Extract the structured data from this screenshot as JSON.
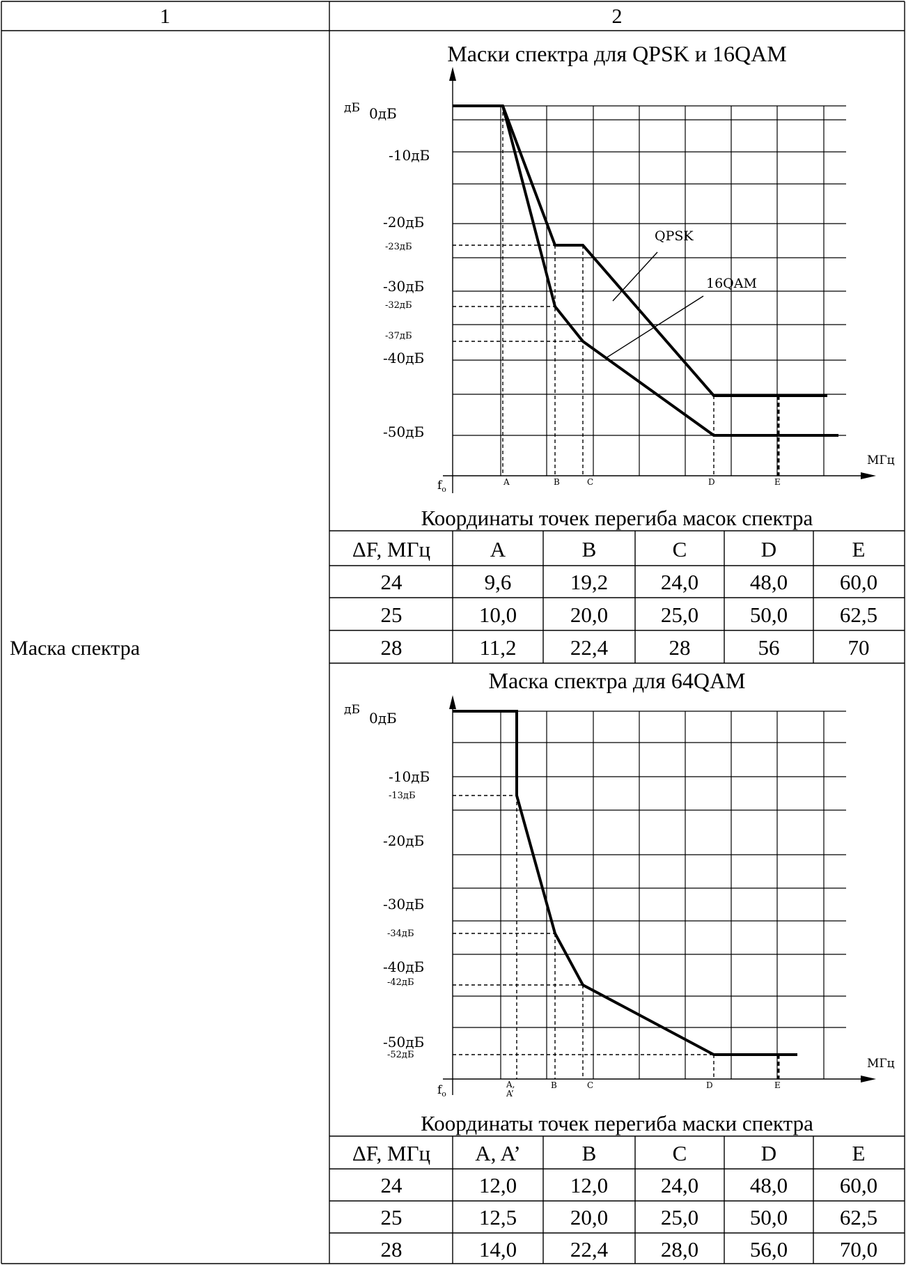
{
  "header": {
    "col1": "1",
    "col2": "2"
  },
  "row_label": "Маска спектра",
  "charts": [
    {
      "title": "Маски спектра для QPSK и 16QAM",
      "y_unit": "дБ",
      "x_unit": "МГц",
      "origin_label": "f",
      "origin_sub": "o",
      "y_ticks": [
        "0дБ",
        "-10дБ",
        "-20дБ",
        "-23дБ",
        "-30дБ",
        "-32дБ",
        "-37дБ",
        "-40дБ",
        "-50дБ"
      ],
      "x_points": [
        "A",
        "B",
        "C",
        "D",
        "E"
      ],
      "series_labels": [
        "QPSK",
        "16QAM"
      ]
    },
    {
      "title": "Маска спектра для 64QAM",
      "y_unit": "дБ",
      "x_unit": "МГц",
      "origin_label": "f",
      "origin_sub": "o",
      "y_ticks": [
        "0дБ",
        "-10дБ",
        "-13дБ",
        "-20дБ",
        "-30дБ",
        "-34дБ",
        "-40дБ",
        "-42дБ",
        "-50дБ",
        "-52дБ"
      ],
      "x_points": [
        "A,",
        "A’",
        "B",
        "C",
        "D",
        "E"
      ]
    }
  ],
  "chart_data": [
    {
      "type": "line",
      "title": "Маски спектра для QPSK и 16QAM",
      "ylabel": "дБ",
      "xlabel": "МГц",
      "series": [
        {
          "name": "QPSK",
          "points": [
            [
              "f0",
              0
            ],
            [
              "A",
              0
            ],
            [
              "B",
              -23
            ],
            [
              "C",
              -23
            ],
            [
              "D",
              -45
            ],
            [
              "E",
              -45
            ]
          ]
        },
        {
          "name": "16QAM",
          "points": [
            [
              "f0",
              0
            ],
            [
              "A",
              0
            ],
            [
              "B",
              -32
            ],
            [
              "C",
              -37
            ],
            [
              "D",
              -50
            ],
            [
              "E",
              -50
            ]
          ]
        }
      ]
    },
    {
      "type": "line",
      "title": "Маска спектра для 64QAM",
      "ylabel": "дБ",
      "xlabel": "МГц",
      "series": [
        {
          "points": [
            [
              "f0",
              0
            ],
            [
              "A",
              0
            ],
            [
              "A’",
              -13
            ],
            [
              "B",
              -34
            ],
            [
              "C",
              -42
            ],
            [
              "D",
              -52
            ],
            [
              "E",
              -52
            ]
          ]
        }
      ]
    }
  ],
  "tables": [
    {
      "caption": "Координаты точек перегиба масок спектра",
      "headers": [
        "ΔF, МГц",
        "A",
        "B",
        "C",
        "D",
        "E"
      ],
      "rows": [
        [
          "24",
          "9,6",
          "19,2",
          "24,0",
          "48,0",
          "60,0"
        ],
        [
          "25",
          "10,0",
          "20,0",
          "25,0",
          "50,0",
          "62,5"
        ],
        [
          "28",
          "11,2",
          "22,4",
          "28",
          "56",
          "70"
        ]
      ]
    },
    {
      "caption": "Координаты точек перегиба маски спектра",
      "headers": [
        "ΔF, МГц",
        "A, A’",
        "B",
        "C",
        "D",
        "E"
      ],
      "rows": [
        [
          "24",
          "12,0",
          "12,0",
          "24,0",
          "48,0",
          "60,0"
        ],
        [
          "25",
          "12,5",
          "20,0",
          "25,0",
          "50,0",
          "62,5"
        ],
        [
          "28",
          "14,0",
          "22,4",
          "28,0",
          "56,0",
          "70,0"
        ]
      ]
    }
  ]
}
